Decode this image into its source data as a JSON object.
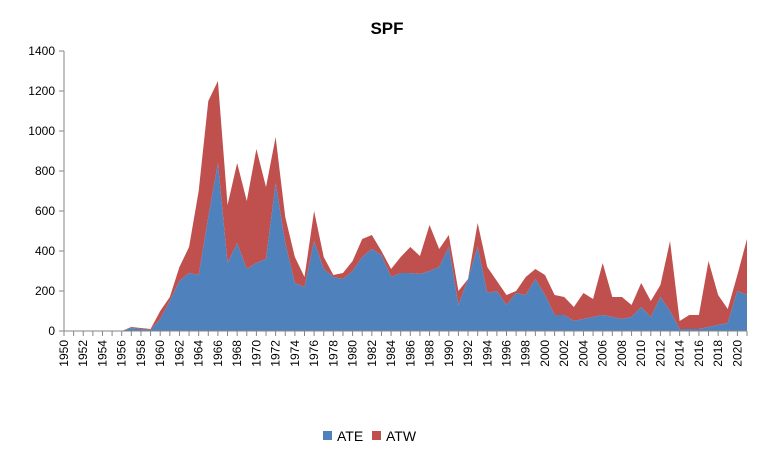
{
  "chart_data": {
    "type": "area",
    "stacked": true,
    "title": "SPF",
    "xlabel": "",
    "ylabel": "",
    "ylim": [
      0,
      1400
    ],
    "yticks": [
      0,
      200,
      400,
      600,
      800,
      1000,
      1200,
      1400
    ],
    "x_start": 1950,
    "x_end": 2021,
    "xtick_labels": [
      "1950",
      "1952",
      "1954",
      "1956",
      "1958",
      "1960",
      "1962",
      "1964",
      "1966",
      "1968",
      "1970",
      "1972",
      "1974",
      "1976",
      "1978",
      "1980",
      "1982",
      "1984",
      "1986",
      "1988",
      "1990",
      "1992",
      "1994",
      "1996",
      "1998",
      "2000",
      "2002",
      "2004",
      "2006",
      "2008",
      "2010",
      "2012",
      "2014",
      "2016",
      "2018",
      "2020"
    ],
    "grid": false,
    "legend_position": "bottom",
    "colors": {
      "ATE": "#4f81bd",
      "ATW": "#c0504d"
    },
    "series": [
      {
        "name": "ATE",
        "values": [
          0,
          0,
          0,
          0,
          0,
          0,
          0,
          15,
          10,
          5,
          60,
          150,
          250,
          290,
          280,
          570,
          840,
          340,
          440,
          310,
          340,
          360,
          740,
          440,
          240,
          220,
          450,
          310,
          270,
          260,
          300,
          370,
          410,
          380,
          270,
          290,
          290,
          285,
          300,
          320,
          420,
          130,
          260,
          420,
          190,
          200,
          130,
          190,
          180,
          260,
          180,
          80,
          80,
          50,
          60,
          70,
          80,
          70,
          60,
          70,
          120,
          70,
          170,
          100,
          10,
          10,
          10,
          20,
          30,
          40,
          200,
          180
        ]
      },
      {
        "name": "ATW",
        "values": [
          0,
          0,
          0,
          0,
          0,
          0,
          0,
          5,
          5,
          5,
          40,
          20,
          70,
          130,
          420,
          580,
          410,
          290,
          400,
          340,
          570,
          360,
          230,
          130,
          130,
          50,
          150,
          60,
          10,
          30,
          50,
          90,
          70,
          20,
          40,
          80,
          130,
          90,
          230,
          90,
          60,
          70,
          0,
          120,
          130,
          50,
          50,
          10,
          90,
          50,
          100,
          100,
          90,
          70,
          130,
          90,
          260,
          100,
          110,
          60,
          120,
          80,
          60,
          350,
          40,
          70,
          70,
          330,
          150,
          70,
          80,
          280
        ]
      }
    ]
  }
}
